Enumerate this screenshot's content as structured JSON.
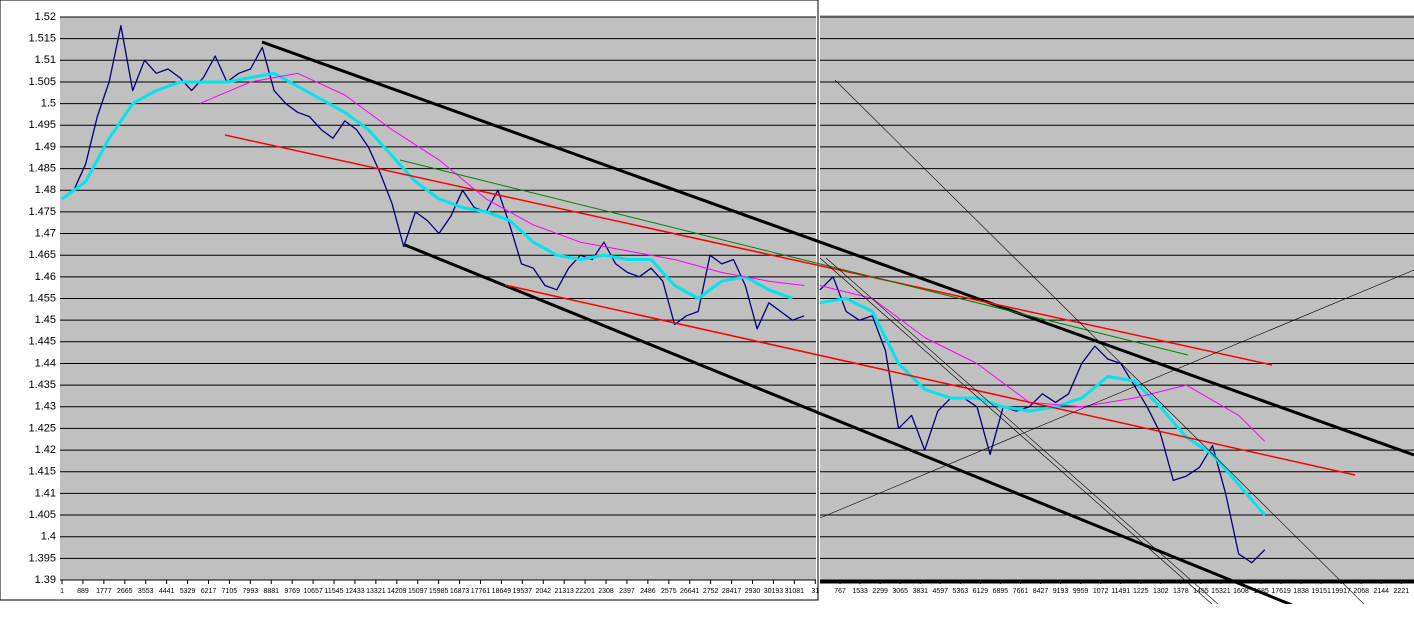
{
  "chart_data": [
    {
      "type": "line",
      "ylim": [
        1.39,
        1.52
      ],
      "yticks": [
        1.39,
        1.395,
        1.4,
        1.405,
        1.41,
        1.415,
        1.42,
        1.425,
        1.43,
        1.435,
        1.44,
        1.445,
        1.45,
        1.455,
        1.46,
        1.465,
        1.47,
        1.475,
        1.48,
        1.485,
        1.49,
        1.495,
        1.5,
        1.505,
        1.51,
        1.515,
        1.52
      ],
      "grid": true,
      "xlim": [
        0,
        32000
      ],
      "xticks": [
        1,
        889,
        1777,
        2665,
        3553,
        4441,
        5329,
        6217,
        7105,
        7993,
        8881,
        9769,
        10657,
        11545,
        12433,
        13321,
        14209,
        15097,
        15985,
        16873,
        17761,
        18649,
        19537,
        {
          "value": 20425,
          "label": "2042"
        },
        21313,
        22201,
        {
          "value": 23089,
          "label": "2308"
        },
        {
          "value": 23977,
          "label": "2397"
        },
        {
          "value": 24865,
          "label": "2486"
        },
        {
          "value": 25753,
          "label": "2575"
        },
        26641,
        {
          "value": 27529,
          "label": "2752"
        },
        28417,
        {
          "value": 29305,
          "label": "2930"
        },
        30193,
        31081,
        {
          "value": 31969,
          "label": "31"
        }
      ],
      "series": [
        {
          "color": "#000080",
          "width": 1.3,
          "x": [
            0,
            500,
            1000,
            1500,
            2000,
            2500,
            3000,
            3500,
            4000,
            4500,
            5000,
            5500,
            6000,
            6500,
            7000,
            7500,
            8000,
            8500,
            9000,
            9500,
            10000,
            10500,
            11000,
            11500,
            12000,
            12500,
            13000,
            13500,
            14000,
            14500,
            15000,
            15500,
            16000,
            16500,
            17000,
            17500,
            18000,
            18500,
            19000,
            19500,
            20000,
            20500,
            21000,
            21500,
            22000,
            22500,
            23000,
            23500,
            24000,
            24500,
            25000,
            25500,
            26000,
            26500,
            27000,
            27500,
            28000,
            28500,
            29000,
            29500,
            30000,
            30500,
            31000,
            31500
          ],
          "values": [
            1.478,
            1.48,
            1.486,
            1.497,
            1.505,
            1.518,
            1.503,
            1.51,
            1.507,
            1.508,
            1.506,
            1.503,
            1.506,
            1.511,
            1.505,
            1.507,
            1.508,
            1.513,
            1.503,
            1.5,
            1.498,
            1.497,
            1.494,
            1.492,
            1.496,
            1.494,
            1.49,
            1.484,
            1.477,
            1.467,
            1.475,
            1.473,
            1.47,
            1.474,
            1.48,
            1.476,
            1.475,
            1.48,
            1.472,
            1.463,
            1.462,
            1.458,
            1.457,
            1.462,
            1.465,
            1.464,
            1.468,
            1.463,
            1.461,
            1.46,
            1.462,
            1.459,
            1.449,
            1.451,
            1.452,
            1.465,
            1.463,
            1.464,
            1.458,
            1.448,
            1.454,
            1.452,
            1.45,
            1.451
          ]
        },
        {
          "color": "#00e5ee",
          "width": 3,
          "x": [
            0,
            1000,
            2000,
            3000,
            4000,
            5000,
            6000,
            7000,
            8000,
            9000,
            10000,
            11000,
            12000,
            13000,
            14000,
            15000,
            16000,
            17000,
            18000,
            19000,
            20000,
            21000,
            22000,
            23000,
            24000,
            25000,
            26000,
            27000,
            28000,
            29000,
            30000,
            31000
          ],
          "values": [
            1.478,
            1.482,
            1.492,
            1.5,
            1.503,
            1.505,
            1.505,
            1.505,
            1.506,
            1.507,
            1.504,
            1.501,
            1.498,
            1.494,
            1.488,
            1.482,
            1.478,
            1.476,
            1.475,
            1.473,
            1.468,
            1.465,
            1.464,
            1.465,
            1.464,
            1.464,
            1.458,
            1.455,
            1.459,
            1.46,
            1.457,
            1.455
          ]
        },
        {
          "color": "#ff00ff",
          "width": 1,
          "x": [
            5850,
            8000,
            10000,
            12000,
            14000,
            16000,
            18000,
            20000,
            22000,
            24000,
            26000,
            28000,
            30000,
            31500
          ],
          "values": [
            1.5,
            1.505,
            1.507,
            1.502,
            1.494,
            1.487,
            1.478,
            1.472,
            1.468,
            1.466,
            1.464,
            1.461,
            1.459,
            1.458
          ]
        }
      ]
    },
    {
      "type": "line",
      "ylim": [
        1.39,
        1.52
      ],
      "grid": true,
      "xlim": [
        0,
        22700
      ],
      "xticks": [
        767,
        1533,
        2299,
        3065,
        3831,
        4597,
        5363,
        6129,
        6895,
        7661,
        8427,
        9193,
        9959,
        {
          "value": 10725,
          "label": "1072"
        },
        11491,
        {
          "value": 12257,
          "label": "1225"
        },
        {
          "value": 13023,
          "label": "1302"
        },
        {
          "value": 13789,
          "label": "1378"
        },
        {
          "value": 14555,
          "label": "1455"
        },
        15321,
        {
          "value": 16087,
          "label": "1608"
        },
        {
          "value": 16853,
          "label": "1685"
        },
        17619,
        {
          "value": 18385,
          "label": "1838"
        },
        19151,
        19917,
        {
          "value": 20683,
          "label": "2068"
        },
        {
          "value": 21449,
          "label": "2144"
        },
        {
          "value": 22215,
          "label": "2221"
        }
      ],
      "series": [
        {
          "color": "#000080",
          "width": 1.3,
          "x": [
            0,
            500,
            1000,
            1500,
            2000,
            2500,
            3000,
            3500,
            4000,
            4500,
            5000,
            5500,
            6000,
            6500,
            7000,
            7500,
            8000,
            8500,
            9000,
            9500,
            10000,
            10500,
            11000,
            11500,
            12000,
            12500,
            13000,
            13500,
            14000,
            14500,
            15000,
            15500,
            16000,
            16500,
            17000
          ],
          "values": [
            1.457,
            1.46,
            1.452,
            1.45,
            1.451,
            1.443,
            1.425,
            1.428,
            1.42,
            1.429,
            1.432,
            1.432,
            1.43,
            1.419,
            1.43,
            1.429,
            1.43,
            1.433,
            1.431,
            1.433,
            1.44,
            1.444,
            1.441,
            1.44,
            1.435,
            1.43,
            1.424,
            1.413,
            1.414,
            1.416,
            1.421,
            1.41,
            1.396,
            1.394,
            1.397
          ]
        },
        {
          "color": "#00e5ee",
          "width": 3,
          "x": [
            0,
            1000,
            2000,
            3000,
            4000,
            5000,
            6000,
            7000,
            8000,
            9000,
            10000,
            11000,
            12000,
            13000,
            14000,
            15000,
            16000,
            17000
          ],
          "values": [
            1.454,
            1.455,
            1.452,
            1.44,
            1.434,
            1.432,
            1.432,
            1.43,
            1.429,
            1.43,
            1.432,
            1.437,
            1.436,
            1.43,
            1.423,
            1.419,
            1.412,
            1.405
          ]
        },
        {
          "color": "#ff00ff",
          "width": 1,
          "x": [
            0,
            2000,
            4000,
            6000,
            8000,
            10000,
            12000,
            14000,
            16000,
            17000
          ],
          "values": [
            1.458,
            1.455,
            1.446,
            1.44,
            1.431,
            1.43,
            1.432,
            1.435,
            1.428,
            1.422
          ]
        }
      ]
    }
  ]
}
